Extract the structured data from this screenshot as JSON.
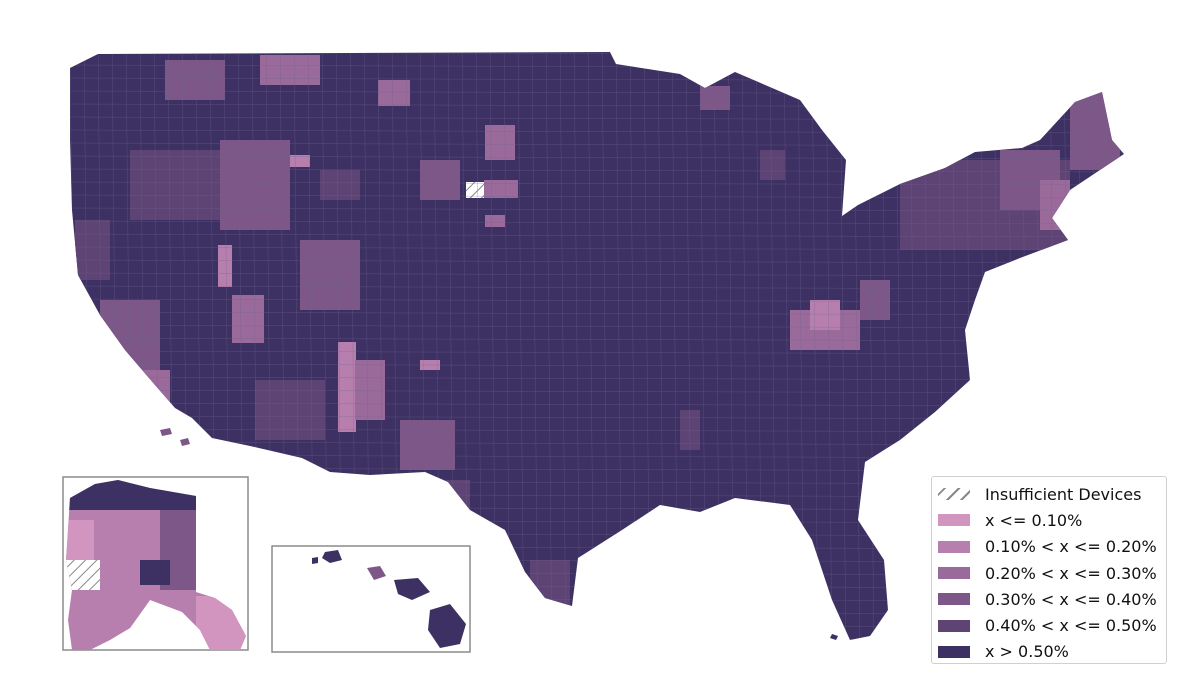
{
  "palette": {
    "insufficient": "hatch",
    "b1": "#d295bf",
    "b2": "#b77fae",
    "b3": "#9a6a9b",
    "b4": "#7d5788",
    "b5": "#5e4474",
    "b6": "#3d3163",
    "county_border": "#6e6590"
  },
  "legend": {
    "items": [
      {
        "label": "Insufficient Devices",
        "color": "hatch"
      },
      {
        "label": "x <= 0.10%",
        "color": "#d295bf"
      },
      {
        "label": "0.10% < x <= 0.20%",
        "color": "#b77fae"
      },
      {
        "label": "0.20% < x <= 0.30%",
        "color": "#9a6a9b"
      },
      {
        "label": "0.30% < x <= 0.40%",
        "color": "#7d5788"
      },
      {
        "label": "0.40% < x <= 0.50%",
        "color": "#5e4474"
      },
      {
        "label": "x > 0.50%",
        "color": "#3d3163"
      }
    ]
  },
  "regions": {
    "contiguous_us": "mainland",
    "alaska_inset": "alaska",
    "hawaii_inset": "hawaii"
  }
}
